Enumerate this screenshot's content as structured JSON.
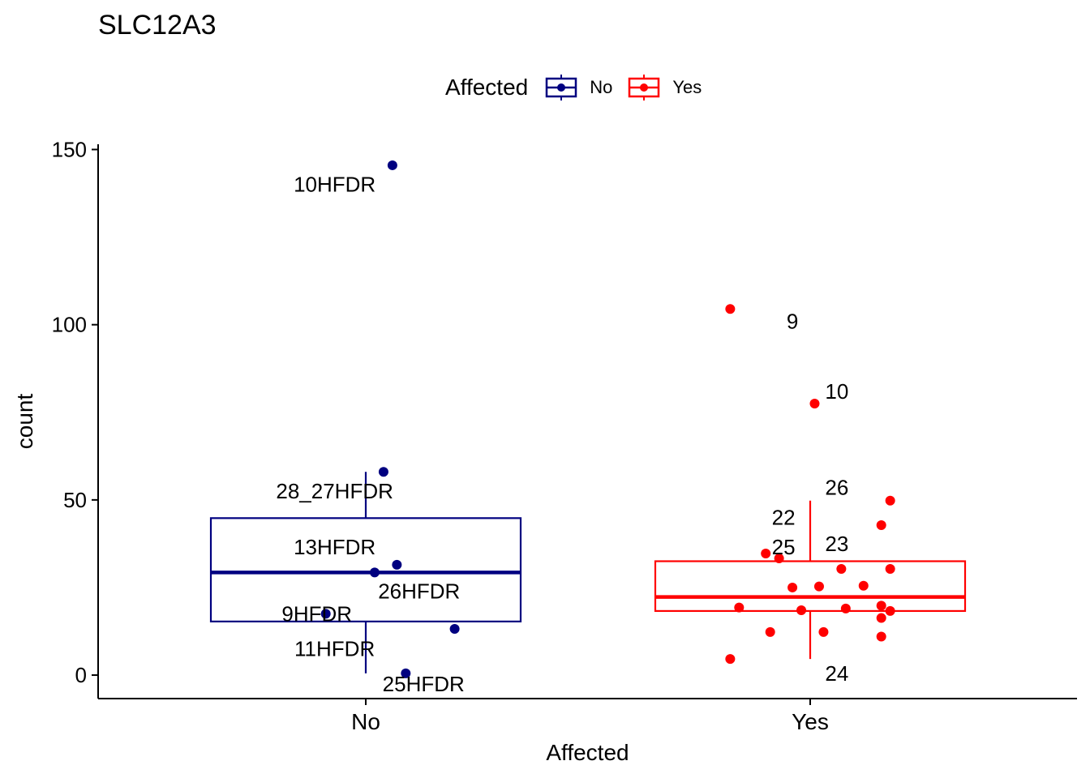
{
  "title": "SLC12A3",
  "legend": {
    "title": "Affected",
    "items": [
      {
        "label": "No",
        "color": "#000080"
      },
      {
        "label": "Yes",
        "color": "#ff0000"
      }
    ]
  },
  "chart_data": {
    "type": "box",
    "title": "SLC12A3",
    "xlabel": "Affected",
    "ylabel": "count",
    "categories": [
      "No",
      "Yes"
    ],
    "ylim": [
      -6.7,
      151.5
    ],
    "yticks": [
      0,
      50,
      100,
      150
    ],
    "grid": false,
    "legend_position": "top",
    "boxes": [
      {
        "category": "No",
        "color": "#000080",
        "q1": 15.3,
        "median": 29.3,
        "q3": 44.8,
        "whisker_low": 0.5,
        "whisker_high": 58.0
      },
      {
        "category": "Yes",
        "color": "#ff0000",
        "q1": 18.3,
        "median": 22.3,
        "q3": 32.5,
        "whisker_low": 4.6,
        "whisker_high": 49.8
      }
    ],
    "points": [
      {
        "category": "No",
        "jitter": 0.06,
        "y": 145.5
      },
      {
        "category": "No",
        "jitter": 0.04,
        "y": 58.0
      },
      {
        "category": "No",
        "jitter": 0.07,
        "y": 31.5
      },
      {
        "category": "No",
        "jitter": 0.02,
        "y": 29.3
      },
      {
        "category": "No",
        "jitter": -0.09,
        "y": 17.5
      },
      {
        "category": "No",
        "jitter": 0.2,
        "y": 13.2
      },
      {
        "category": "No",
        "jitter": 0.09,
        "y": 0.5
      },
      {
        "category": "Yes",
        "jitter": -0.18,
        "y": 104.5
      },
      {
        "category": "Yes",
        "jitter": 0.01,
        "y": 77.5
      },
      {
        "category": "Yes",
        "jitter": 0.18,
        "y": 49.8
      },
      {
        "category": "Yes",
        "jitter": 0.16,
        "y": 42.8
      },
      {
        "category": "Yes",
        "jitter": -0.1,
        "y": 34.7
      },
      {
        "category": "Yes",
        "jitter": -0.07,
        "y": 33.3
      },
      {
        "category": "Yes",
        "jitter": 0.07,
        "y": 30.3
      },
      {
        "category": "Yes",
        "jitter": 0.18,
        "y": 30.3
      },
      {
        "category": "Yes",
        "jitter": 0.12,
        "y": 25.5
      },
      {
        "category": "Yes",
        "jitter": 0.02,
        "y": 25.3
      },
      {
        "category": "Yes",
        "jitter": -0.04,
        "y": 25.0
      },
      {
        "category": "Yes",
        "jitter": 0.16,
        "y": 19.8
      },
      {
        "category": "Yes",
        "jitter": -0.16,
        "y": 19.3
      },
      {
        "category": "Yes",
        "jitter": 0.08,
        "y": 19.0
      },
      {
        "category": "Yes",
        "jitter": -0.02,
        "y": 18.5
      },
      {
        "category": "Yes",
        "jitter": 0.18,
        "y": 18.3
      },
      {
        "category": "Yes",
        "jitter": 0.16,
        "y": 16.3
      },
      {
        "category": "Yes",
        "jitter": -0.09,
        "y": 12.3
      },
      {
        "category": "Yes",
        "jitter": 0.03,
        "y": 12.3
      },
      {
        "category": "Yes",
        "jitter": 0.16,
        "y": 11.0
      },
      {
        "category": "Yes",
        "jitter": -0.18,
        "y": 4.6
      }
    ],
    "labels": [
      {
        "text": "10HFDR",
        "category": "No",
        "x": -0.07,
        "y": 140.0
      },
      {
        "text": "28_27HFDR",
        "category": "No",
        "x": -0.07,
        "y": 52.5
      },
      {
        "text": "13HFDR",
        "category": "No",
        "x": -0.07,
        "y": 36.5
      },
      {
        "text": "26HFDR",
        "category": "No",
        "x": 0.12,
        "y": 24.0
      },
      {
        "text": "9HFDR",
        "category": "No",
        "x": -0.11,
        "y": 17.5
      },
      {
        "text": "11HFDR",
        "category": "No",
        "x": -0.07,
        "y": 7.5
      },
      {
        "text": "25HFDR",
        "category": "No",
        "x": 0.13,
        "y": -2.5
      },
      {
        "text": "9",
        "category": "Yes",
        "x": -0.04,
        "y": 101.0
      },
      {
        "text": "10",
        "category": "Yes",
        "x": 0.06,
        "y": 81.0
      },
      {
        "text": "26",
        "category": "Yes",
        "x": 0.06,
        "y": 53.5
      },
      {
        "text": "22",
        "category": "Yes",
        "x": -0.06,
        "y": 45.0
      },
      {
        "text": "23",
        "category": "Yes",
        "x": 0.06,
        "y": 37.5
      },
      {
        "text": "25",
        "category": "Yes",
        "x": -0.06,
        "y": 36.5
      },
      {
        "text": "24",
        "category": "Yes",
        "x": 0.06,
        "y": 0.5
      }
    ]
  }
}
